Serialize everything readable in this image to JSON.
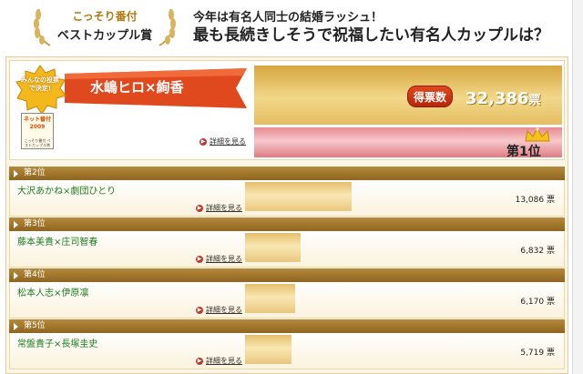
{
  "header": {
    "award_sub": "こっそり番付",
    "award_title": "ベストカップル賞",
    "question_line1": "今年は有名人同士の結婚ラッシュ！",
    "question_line2": "最も長続きしそうで祝福したい有名人カップルは？"
  },
  "winner": {
    "badge_text": "みんなの投票で決定!",
    "name": "水嶋ヒロ×絢香",
    "book_title": "ネット番付2009",
    "book_sub": "こっそり番付 ベストカップル賞",
    "detail_label": "詳細を見る",
    "votes_label": "得票数",
    "votes": "32,386",
    "votes_unit": "票",
    "rank_label": "第1位",
    "share": 1.0
  },
  "ranks": [
    {
      "label": "第2位",
      "name": "大沢あかね×劇団ひとり",
      "detail_label": "詳細を見る",
      "votes": "13,086",
      "unit": "票",
      "share": 0.404
    },
    {
      "label": "第3位",
      "name": "藤本美貴×庄司智春",
      "detail_label": "詳細を見る",
      "votes": "6,832",
      "unit": "票",
      "share": 0.211
    },
    {
      "label": "第4位",
      "name": "松本人志×伊原凛",
      "detail_label": "詳細を見る",
      "votes": "6,170",
      "unit": "票",
      "share": 0.191
    },
    {
      "label": "第5位",
      "name": "常盤貴子×長塚圭史",
      "detail_label": "詳細を見る",
      "votes": "5,719",
      "unit": "票",
      "share": 0.177
    }
  ],
  "colors": {
    "accent_red": "#e0491d",
    "gold": "#d7a640",
    "name_green": "#1d7a1d",
    "header_brown": "#8e6420"
  }
}
